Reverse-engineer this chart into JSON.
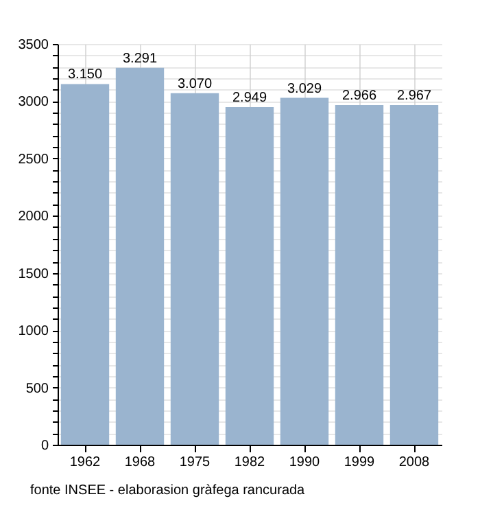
{
  "chart_data": {
    "type": "bar",
    "categories": [
      "1962",
      "1968",
      "1975",
      "1982",
      "1990",
      "1999",
      "2008"
    ],
    "values": [
      3150,
      3291,
      3070,
      2949,
      3029,
      2966,
      2967
    ],
    "value_labels": [
      "3.150",
      "3.291",
      "3.070",
      "2.949",
      "3.029",
      "2.966",
      "2.967"
    ],
    "color": "#9ab4cf",
    "ylim": [
      0,
      3500
    ],
    "yticks": [
      0,
      {
        "value": 100,
        "label": null
      },
      {
        "value": 200,
        "label": null
      },
      {
        "value": 300,
        "label": null
      },
      {
        "value": 400,
        "label": null
      },
      500,
      {
        "value": 600,
        "label": null
      },
      {
        "value": 700,
        "label": null
      },
      {
        "value": 800,
        "label": null
      },
      {
        "value": 900,
        "label": null
      },
      1000,
      {
        "value": 1100,
        "label": null
      },
      {
        "value": 1200,
        "label": null
      },
      {
        "value": 1300,
        "label": null
      },
      {
        "value": 1400,
        "label": null
      },
      1500,
      {
        "value": 1600,
        "label": null
      },
      {
        "value": 1700,
        "label": null
      },
      {
        "value": 1800,
        "label": null
      },
      {
        "value": 1900,
        "label": null
      },
      2000,
      {
        "value": 2100,
        "label": null
      },
      {
        "value": 2200,
        "label": null
      },
      {
        "value": 2300,
        "label": null
      },
      {
        "value": 2400,
        "label": null
      },
      2500,
      {
        "value": 2600,
        "label": null
      },
      {
        "value": 2700,
        "label": null
      },
      {
        "value": 2800,
        "label": null
      },
      {
        "value": 2900,
        "label": null
      },
      3000,
      {
        "value": 3100,
        "label": null
      },
      {
        "value": 3200,
        "label": null
      },
      {
        "value": 3300,
        "label": null
      },
      {
        "value": 3400,
        "label": null
      },
      3500
    ],
    "grid": true,
    "annotations": [
      "fonte INSEE - elaborasion gràfega rancurada"
    ]
  }
}
